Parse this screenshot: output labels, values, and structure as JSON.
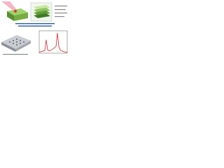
{
  "spectrum": {
    "xlim": [
      0,
      20
    ],
    "ylim": [
      0,
      10
    ],
    "x": [
      0,
      2,
      4,
      5,
      6,
      7,
      8,
      10,
      12,
      13,
      14,
      15,
      16,
      18,
      20
    ],
    "values": [
      0.5,
      0.8,
      1.2,
      6,
      1.5,
      1,
      1.2,
      2,
      3,
      9,
      3,
      1.5,
      1,
      0.6,
      0.4
    ]
  }
}
